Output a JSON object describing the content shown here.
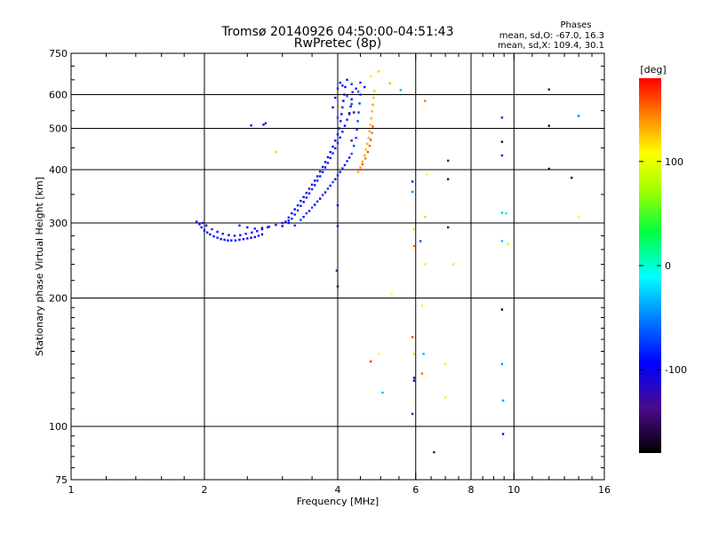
{
  "chart_data": {
    "type": "scatter",
    "title": "Tromsø 20140926 04:50:00-04:51:43",
    "subtitle": "RwPretec (8p)",
    "xlabel": "Frequency [MHz]",
    "ylabel": "Stationary phase Virtual Height [km]",
    "x_scale": "log",
    "y_scale": "log",
    "xlim": [
      1,
      16
    ],
    "ylim": [
      75,
      750
    ],
    "x_ticks": [
      1,
      2,
      4,
      6,
      8,
      10,
      16
    ],
    "y_ticks": [
      75,
      100,
      200,
      300,
      400,
      500,
      600,
      750
    ],
    "grid": true,
    "stats": {
      "heading": "Phases",
      "line_o": "mean, sd,O: -67.0, 16.3",
      "line_x": "mean, sd,X: 109.4, 30.1"
    },
    "colorbar": {
      "label": "[deg]",
      "range": [
        -180,
        180
      ],
      "ticks": [
        {
          "value": 100,
          "text": "100"
        },
        {
          "value": 0,
          "text": "0"
        },
        {
          "value": -100,
          "text": "-100"
        }
      ]
    },
    "colors": {
      "trace_core": "#1e7ce6",
      "trace_light": "#19b0e8",
      "x_trace_orange": "#ff7a00",
      "x_trace_red": "#ff2a00"
    },
    "series": [
      {
        "points": [
          [
            1.92,
            302,
            -105
          ],
          [
            1.95,
            298,
            -110
          ],
          [
            1.97,
            293,
            -100
          ],
          [
            2.0,
            288,
            -108
          ],
          [
            2.03,
            285,
            -95
          ],
          [
            2.06,
            282,
            -112
          ],
          [
            2.1,
            279,
            -104
          ],
          [
            2.14,
            277,
            -98
          ],
          [
            2.18,
            275,
            -110
          ],
          [
            2.22,
            274,
            -100
          ],
          [
            2.26,
            273,
            -106
          ],
          [
            2.3,
            273,
            -95
          ],
          [
            2.35,
            273,
            -108
          ],
          [
            2.4,
            274,
            -100
          ],
          [
            2.45,
            275,
            -112
          ],
          [
            2.5,
            276,
            -98
          ],
          [
            2.55,
            277,
            -104
          ],
          [
            2.6,
            278,
            -110
          ],
          [
            2.65,
            280,
            -96
          ],
          [
            2.7,
            282,
            -102
          ],
          [
            1.98,
            300,
            -90
          ],
          [
            2.02,
            296,
            -98
          ],
          [
            2.08,
            290,
            -92
          ],
          [
            2.14,
            286,
            -100
          ],
          [
            2.2,
            283,
            -94
          ],
          [
            2.27,
            281,
            -102
          ],
          [
            2.34,
            280,
            -96
          ],
          [
            2.41,
            281,
            -104
          ],
          [
            2.48,
            283,
            -92
          ],
          [
            2.56,
            285,
            -100
          ],
          [
            2.63,
            287,
            -94
          ],
          [
            2.7,
            290,
            -106
          ],
          [
            2.78,
            293,
            -98
          ],
          [
            2.4,
            296,
            -90
          ],
          [
            2.5,
            293,
            -96
          ],
          [
            2.6,
            291,
            -88
          ],
          [
            2.7,
            292,
            -100
          ],
          [
            2.8,
            294,
            -92
          ],
          [
            2.9,
            297,
            -98
          ],
          [
            3.0,
            300,
            -90
          ],
          [
            3.1,
            304,
            -100
          ],
          [
            3.0,
            295,
            -112
          ],
          [
            3.05,
            302,
            -105
          ],
          [
            3.1,
            309,
            -110
          ],
          [
            3.15,
            316,
            -100
          ],
          [
            3.2,
            323,
            -108
          ],
          [
            3.25,
            330,
            -102
          ],
          [
            3.3,
            338,
            -110
          ],
          [
            3.35,
            345,
            -98
          ],
          [
            3.4,
            353,
            -106
          ],
          [
            3.45,
            361,
            -100
          ],
          [
            3.5,
            369,
            -112
          ],
          [
            3.55,
            377,
            -104
          ],
          [
            3.6,
            386,
            -110
          ],
          [
            3.65,
            396,
            -100
          ],
          [
            3.7,
            406,
            -108
          ],
          [
            3.75,
            417,
            -102
          ],
          [
            3.8,
            428,
            -110
          ],
          [
            3.85,
            440,
            -98
          ],
          [
            3.9,
            453,
            -106
          ],
          [
            3.95,
            468,
            -100
          ],
          [
            4.0,
            484,
            -112
          ],
          [
            4.03,
            500,
            -104
          ],
          [
            4.06,
            520,
            -110
          ],
          [
            4.08,
            540,
            -100
          ],
          [
            4.1,
            560,
            -108
          ],
          [
            4.12,
            580,
            -102
          ],
          [
            4.14,
            600,
            -110
          ],
          [
            4.16,
            625,
            -98
          ],
          [
            3.1,
            300,
            -90
          ],
          [
            3.15,
            307,
            -95
          ],
          [
            3.2,
            314,
            -88
          ],
          [
            3.25,
            321,
            -96
          ],
          [
            3.3,
            329,
            -90
          ],
          [
            3.35,
            336,
            -98
          ],
          [
            3.4,
            344,
            -92
          ],
          [
            3.45,
            352,
            -100
          ],
          [
            3.5,
            360,
            -90
          ],
          [
            3.55,
            368,
            -96
          ],
          [
            3.6,
            377,
            -88
          ],
          [
            3.65,
            386,
            -94
          ],
          [
            3.7,
            395,
            -90
          ],
          [
            3.75,
            405,
            -98
          ],
          [
            3.8,
            415,
            -92
          ],
          [
            3.85,
            426,
            -100
          ],
          [
            3.9,
            437,
            -90
          ],
          [
            3.95,
            449,
            -96
          ],
          [
            4.0,
            462,
            -88
          ],
          [
            4.05,
            476,
            -94
          ],
          [
            4.1,
            491,
            -90
          ],
          [
            4.15,
            507,
            -98
          ],
          [
            4.2,
            524,
            -92
          ],
          [
            4.25,
            543,
            -100
          ],
          [
            4.28,
            563,
            -90
          ],
          [
            4.3,
            585,
            -96
          ],
          [
            4.32,
            608,
            -88
          ],
          [
            3.2,
            296,
            -85
          ],
          [
            3.3,
            305,
            -80
          ],
          [
            3.4,
            316,
            -86
          ],
          [
            3.5,
            326,
            -78
          ],
          [
            3.6,
            337,
            -84
          ],
          [
            3.7,
            349,
            -80
          ],
          [
            3.8,
            361,
            -86
          ],
          [
            3.9,
            374,
            -78
          ],
          [
            4.0,
            388,
            -84
          ],
          [
            4.1,
            403,
            -80
          ],
          [
            4.2,
            419,
            -86
          ],
          [
            4.3,
            436,
            -78
          ],
          [
            4.35,
            455,
            -84
          ],
          [
            4.4,
            475,
            -80
          ],
          [
            4.42,
            497,
            -86
          ],
          [
            4.44,
            520,
            -78
          ],
          [
            4.46,
            545,
            -84
          ],
          [
            4.48,
            572,
            -80
          ],
          [
            4.5,
            600,
            -86
          ],
          [
            3.35,
            310,
            -115
          ],
          [
            3.45,
            320,
            -120
          ],
          [
            3.55,
            331,
            -112
          ],
          [
            3.65,
            342,
            -118
          ],
          [
            3.75,
            354,
            -110
          ],
          [
            3.85,
            367,
            -116
          ],
          [
            3.95,
            380,
            -112
          ],
          [
            4.05,
            395,
            -120
          ],
          [
            4.15,
            410,
            -110
          ],
          [
            4.25,
            427,
            -116
          ],
          [
            3.9,
            560,
            -95
          ],
          [
            3.95,
            590,
            -100
          ],
          [
            4.0,
            620,
            -92
          ],
          [
            4.05,
            640,
            -98
          ],
          [
            4.1,
            630,
            -90
          ],
          [
            4.2,
            650,
            -96
          ],
          [
            4.3,
            635,
            -88
          ],
          [
            4.4,
            620,
            -94
          ],
          [
            4.5,
            640,
            -90
          ],
          [
            4.6,
            625,
            -98
          ],
          [
            4.0,
            530,
            -75
          ],
          [
            4.1,
            560,
            -80
          ],
          [
            4.2,
            595,
            -72
          ],
          [
            4.3,
            570,
            -78
          ],
          [
            4.45,
            610,
            -74
          ],
          [
            2.55,
            508,
            -100
          ],
          [
            2.72,
            510,
            -104
          ],
          [
            2.75,
            514,
            -98
          ],
          [
            4.0,
            330,
            -100
          ],
          [
            4.0,
            295,
            -115
          ],
          [
            3.98,
            232,
            -140
          ],
          [
            4.0,
            213,
            -150
          ]
        ]
      },
      {
        "points": [
          [
            4.45,
            395,
            130
          ],
          [
            4.5,
            405,
            135
          ],
          [
            4.55,
            418,
            128
          ],
          [
            4.6,
            432,
            132
          ],
          [
            4.63,
            446,
            125
          ],
          [
            4.66,
            460,
            130
          ],
          [
            4.7,
            475,
            128
          ],
          [
            4.72,
            492,
            135
          ],
          [
            4.74,
            510,
            125
          ],
          [
            4.76,
            528,
            130
          ],
          [
            4.78,
            548,
            128
          ],
          [
            4.8,
            568,
            132
          ],
          [
            4.82,
            590,
            125
          ],
          [
            4.84,
            612,
            120
          ],
          [
            4.5,
            400,
            155
          ],
          [
            4.55,
            412,
            160
          ],
          [
            4.62,
            425,
            150
          ],
          [
            4.68,
            440,
            158
          ],
          [
            4.72,
            455,
            152
          ],
          [
            4.75,
            470,
            160
          ],
          [
            4.78,
            488,
            150
          ],
          [
            4.8,
            505,
            158
          ],
          [
            4.3,
            468,
            -140
          ],
          [
            4.35,
            545,
            -155
          ],
          [
            4.25,
            540,
            -150
          ],
          [
            4.75,
            662,
            110
          ],
          [
            4.95,
            680,
            120
          ],
          [
            5.25,
            638,
            40
          ],
          [
            2.9,
            440,
            120
          ],
          [
            6.3,
            580,
            150
          ],
          [
            6.35,
            390,
            80
          ],
          [
            6.3,
            310,
            60
          ],
          [
            5.9,
            375,
            -90
          ],
          [
            5.9,
            355,
            -55
          ],
          [
            5.95,
            290,
            60
          ],
          [
            5.95,
            265,
            145
          ],
          [
            6.15,
            272,
            -75
          ],
          [
            6.3,
            240,
            90
          ],
          [
            7.3,
            240,
            110
          ],
          [
            7.1,
            420,
            -150
          ],
          [
            7.1,
            380,
            -160
          ],
          [
            7.1,
            293,
            -150
          ],
          [
            6.2,
            192,
            90
          ],
          [
            5.3,
            205,
            100
          ],
          [
            5.9,
            162,
            160
          ],
          [
            4.75,
            142,
            170
          ],
          [
            4.95,
            148,
            90
          ],
          [
            5.95,
            148,
            70
          ],
          [
            6.25,
            148,
            -40
          ],
          [
            5.95,
            130,
            -150
          ],
          [
            5.95,
            128,
            -110
          ],
          [
            6.2,
            133,
            150
          ],
          [
            5.05,
            120,
            -40
          ],
          [
            5.9,
            107,
            -140
          ],
          [
            7.0,
            140,
            80
          ],
          [
            7.0,
            117,
            90
          ],
          [
            6.6,
            87,
            -150
          ],
          [
            9.4,
            530,
            -90
          ],
          [
            9.4,
            465,
            -160
          ],
          [
            9.4,
            432,
            -110
          ],
          [
            9.4,
            317,
            -30
          ],
          [
            9.6,
            316,
            -15
          ],
          [
            9.4,
            272,
            -30
          ],
          [
            9.7,
            268,
            80
          ],
          [
            9.4,
            188,
            -170
          ],
          [
            9.4,
            140,
            -50
          ],
          [
            9.45,
            115,
            -50
          ],
          [
            9.45,
            96,
            -120
          ],
          [
            12.0,
            617,
            -150
          ],
          [
            12.0,
            507,
            -165
          ],
          [
            12.0,
            402,
            -160
          ],
          [
            13.5,
            383,
            -170
          ],
          [
            14.0,
            535,
            -60
          ],
          [
            14.0,
            310,
            100
          ],
          [
            5.55,
            615,
            -40
          ]
        ]
      }
    ]
  }
}
